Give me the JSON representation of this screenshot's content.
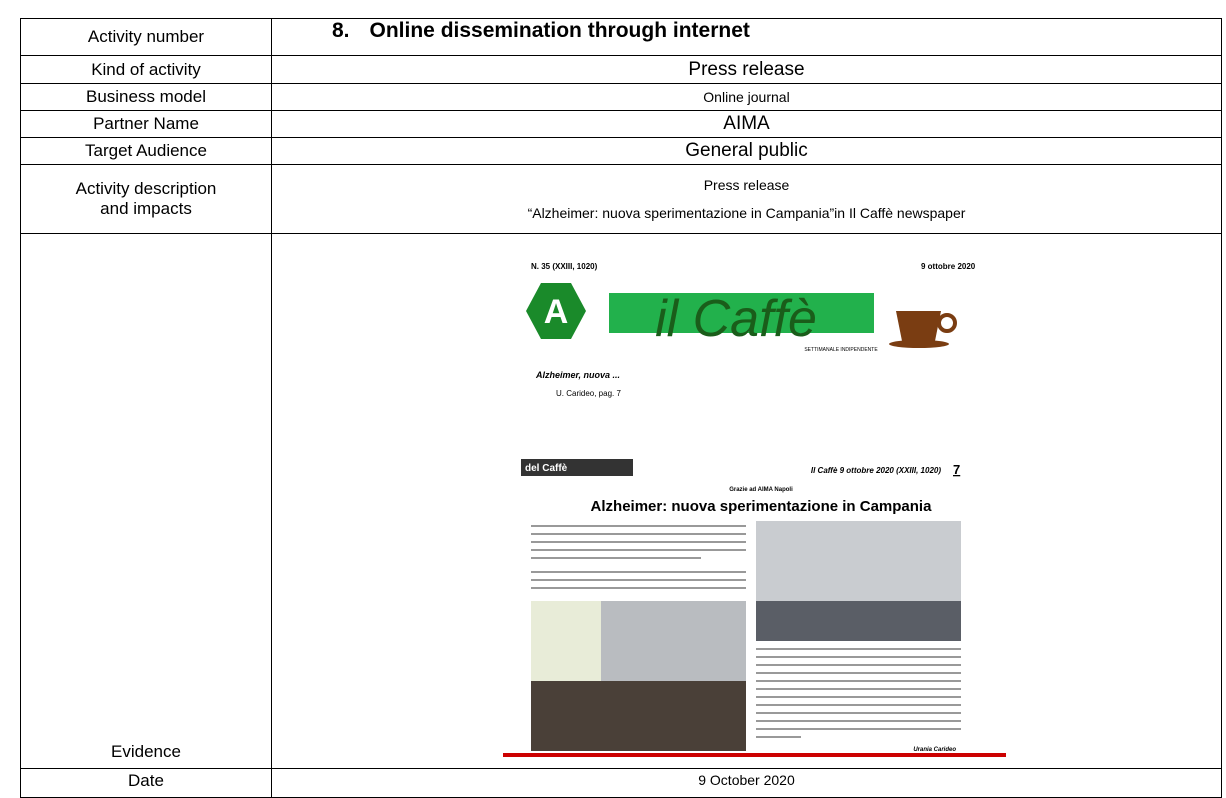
{
  "table": {
    "rows": [
      {
        "label": "Activity number",
        "number": "8.",
        "value": "Online dissemination through internet"
      },
      {
        "label": "Kind of activity",
        "value": "Press release"
      },
      {
        "label": "Business model",
        "value": "Online journal"
      },
      {
        "label": "Partner Name",
        "value": "AIMA"
      },
      {
        "label": "Target Audience",
        "value": "General public"
      },
      {
        "label": [
          "Activity description",
          "and impacts"
        ],
        "value": [
          "Press release",
          "“Alzheimer: nuova sperimentazione in Campania”in Il Caffè newspaper"
        ]
      },
      {
        "label": "Evidence",
        "newspaper": {
          "issue": "N. 35 (XXIII, 1020)",
          "date": "9 ottobre 2020",
          "masthead": "il Caffè",
          "tagline": "SETTIMANALE INDIPENDENTE",
          "teaser": "Alzheimer, nuova ...",
          "teaser_byline": "U. Carideo, pag. 7",
          "section": "del Caffè",
          "page_header": "Il Caffè 9 ottobre 2020 (XXIII, 1020)",
          "page_number": "7",
          "kicker": "Grazie ad AIMA Napoli",
          "headline": "Alzheimer: nuova sperimentazione in Campania",
          "author": "Urania Carideo"
        }
      },
      {
        "label": "Date",
        "value": "9 October 2020"
      }
    ]
  }
}
